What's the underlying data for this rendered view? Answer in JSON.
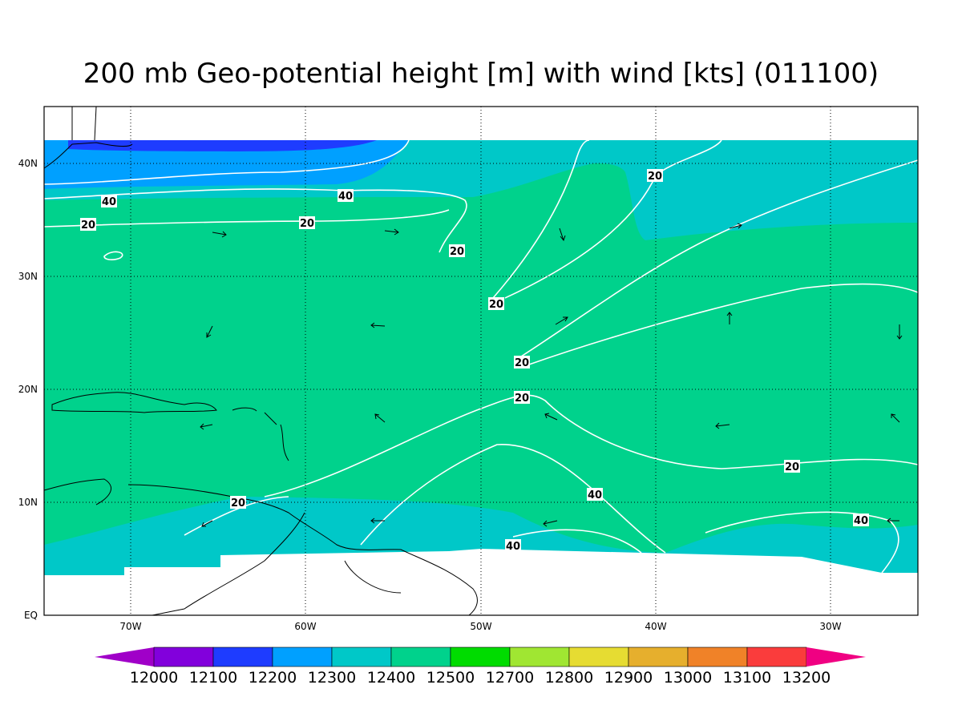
{
  "title": "200 mb Geo-potential height [m] with wind [kts] (011100)",
  "axes": {
    "x_labels": [
      "70W",
      "60W",
      "50W",
      "40W",
      "30W"
    ],
    "y_labels": [
      "EQ",
      "10N",
      "20N",
      "30N",
      "40N"
    ]
  },
  "contour_labels": [
    "40",
    "40",
    "20",
    "20",
    "20",
    "20",
    "20",
    "20",
    "20",
    "20",
    "40",
    "20",
    "40",
    "40"
  ],
  "colorbar": {
    "labels": [
      "12000",
      "12100",
      "12200",
      "12300",
      "12400",
      "12500",
      "12700",
      "12800",
      "12900",
      "13000",
      "13100",
      "13200"
    ],
    "colors": [
      "#a000c8",
      "#8200dc",
      "#1e3cff",
      "#00a0ff",
      "#00c8c8",
      "#00d28c",
      "#00dc00",
      "#a0e632",
      "#e6dc32",
      "#e6af2d",
      "#f08228",
      "#fa3c3c",
      "#f00082"
    ]
  }
}
